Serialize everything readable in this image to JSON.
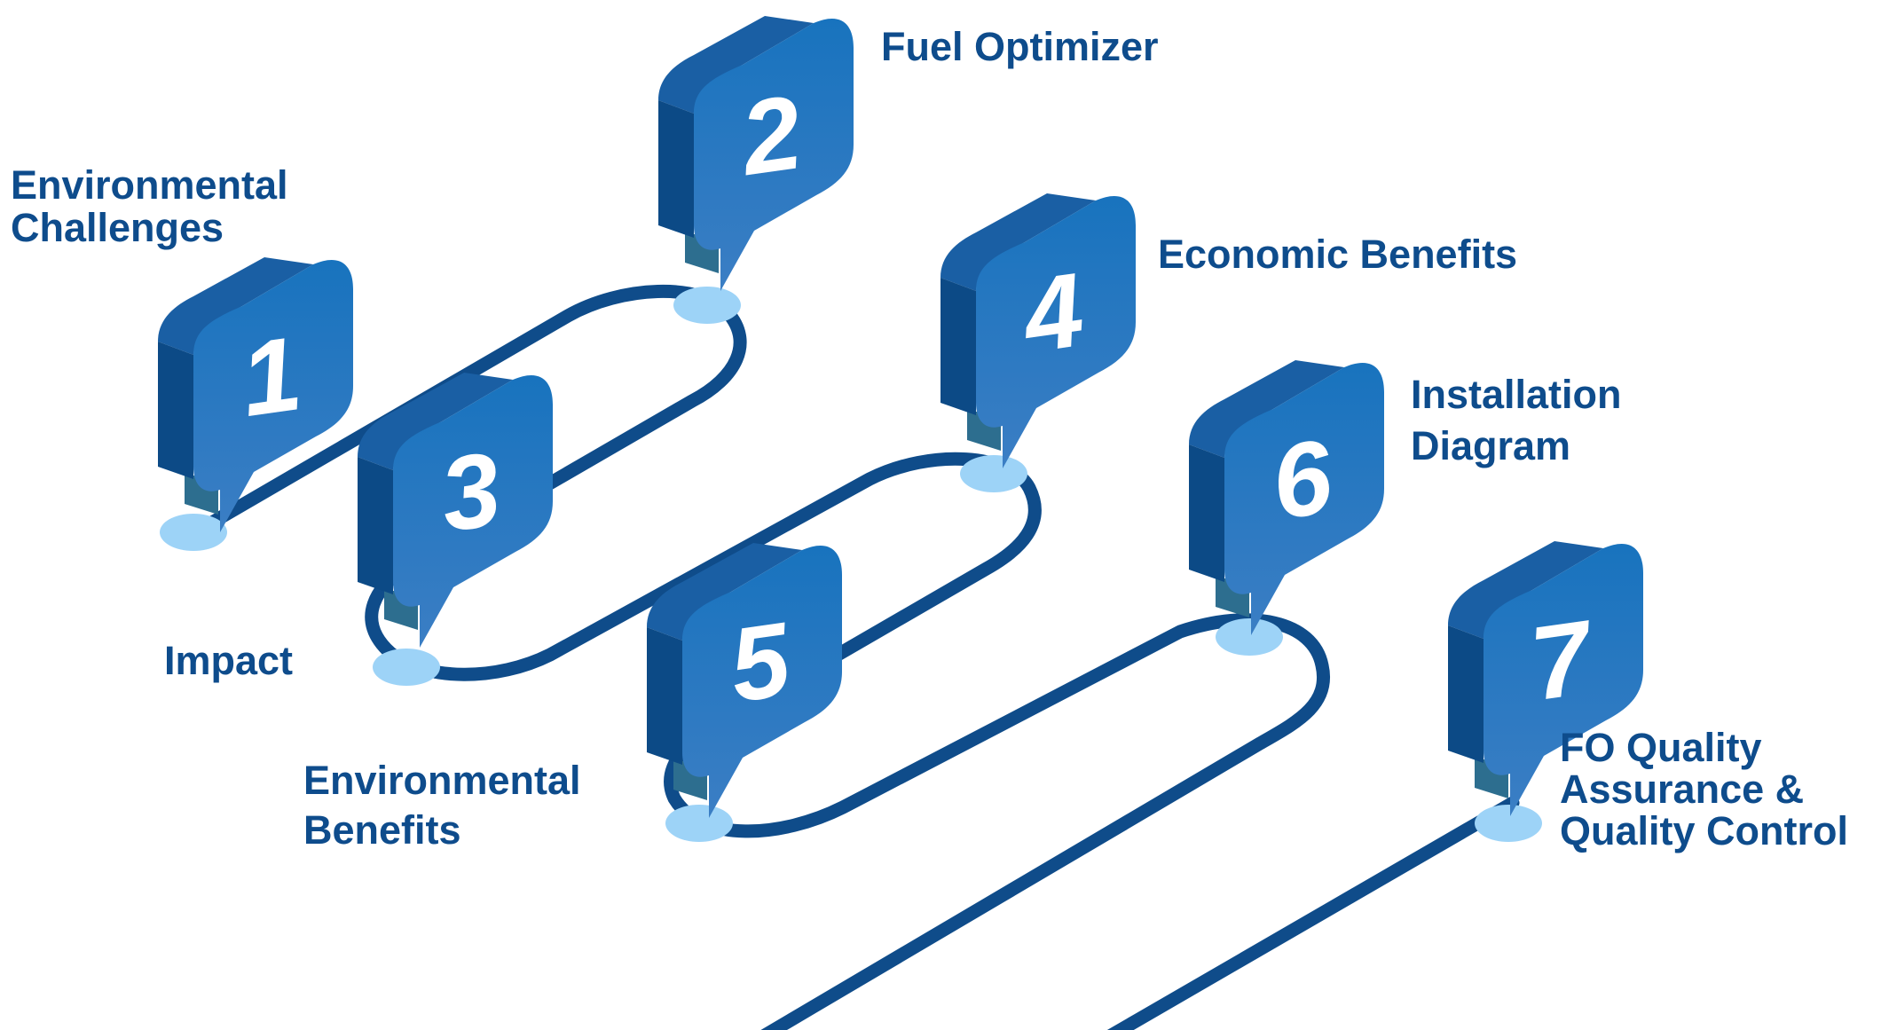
{
  "colors": {
    "label_text": "#0e4c8c",
    "path_stroke": "#0f4c8a",
    "dot_fill": "#9dd3f7",
    "marker_front_top": "#1873be",
    "marker_front_bottom": "#3b7ec4",
    "marker_side": "#0c4a86",
    "marker_top": "#1a5fa4",
    "stem_fill": "#2d6e8f",
    "number_fill": "#ffffff"
  },
  "steps": [
    {
      "number": "1",
      "label_lines": [
        "Environmental",
        "Challenges"
      ]
    },
    {
      "number": "2",
      "label_lines": [
        "Fuel Optimizer"
      ]
    },
    {
      "number": "3",
      "label_lines": [
        "Impact"
      ]
    },
    {
      "number": "4",
      "label_lines": [
        "Economic Benefits"
      ]
    },
    {
      "number": "5",
      "label_lines": [
        "Environmental",
        "Benefits"
      ]
    },
    {
      "number": "6",
      "label_lines": [
        "Installation",
        "Diagram"
      ]
    },
    {
      "number": "7",
      "label_lines": [
        "FO Quality",
        "Assurance &",
        "Quality Control"
      ]
    }
  ]
}
